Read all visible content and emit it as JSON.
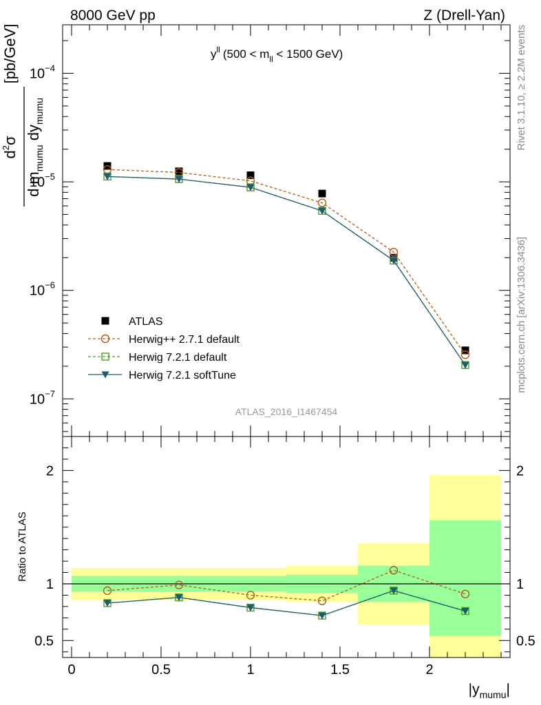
{
  "header": {
    "left": "8000 GeV pp",
    "right": "Z (Drell-Yan)"
  },
  "side_labels": {
    "rivet": "Rivet 3.1.10, ≥ 2.2M events",
    "mcplots": "mcplots.cern.ch [arXiv:1306.3436]"
  },
  "chart_data": {
    "type": "scatter",
    "title": "y^{ll} (500 < m_{ll} < 1500 GeV)",
    "title_main": "y",
    "title_sup": "ll",
    "title_pre": "(500 < m",
    "title_sub": "ll",
    "title_post": " < 1500 GeV)",
    "analysis_label": "ATLAS_2016_I1467454",
    "ylabel_main": "d²σ / (d m_mumu dy_mumu) [pb/GeV]",
    "ylabel_ratio": "Ratio to ATLAS",
    "xlabel": "|y_mumu|",
    "xlabel_main": "|y",
    "xlabel_sub": "mumu",
    "xlabel_post": "|",
    "xlim": [
      -0.05,
      2.45
    ],
    "ylim_main": [
      4.5e-08,
      0.00028
    ],
    "ylog": true,
    "ylim_ratio": [
      0.35,
      2.3
    ],
    "x_ticks": [
      0,
      0.5,
      1,
      1.5,
      2
    ],
    "x_tick_labels": [
      "0",
      "0.5",
      "1",
      "1.5",
      "2"
    ],
    "y_main_ticks_exp": [
      -7,
      -6,
      -5,
      -4
    ],
    "y_ratio_ticks": [
      0.5,
      1,
      2
    ],
    "y_ratio_tick_labels": [
      "0.5",
      "1",
      "2"
    ],
    "x": [
      0.2,
      0.6,
      1.0,
      1.4,
      1.8,
      2.2
    ],
    "bin_edges": [
      0.0,
      0.4,
      0.8,
      1.2,
      1.6,
      2.0,
      2.4
    ],
    "bands": {
      "inner_low": [
        0.93,
        0.93,
        0.93,
        0.92,
        0.84,
        0.54
      ],
      "inner_high": [
        1.07,
        1.07,
        1.07,
        1.08,
        1.16,
        1.56
      ],
      "outer_low": [
        0.86,
        0.86,
        0.86,
        0.84,
        0.64,
        0.35
      ],
      "outer_high": [
        1.14,
        1.14,
        1.14,
        1.16,
        1.36,
        1.96
      ]
    },
    "series": [
      {
        "name": "ATLAS",
        "values": [
          1.4e-05,
          1.25e-05,
          1.15e-05,
          7.8e-06,
          2e-06,
          2.8e-07
        ],
        "ratio": [
          1,
          1,
          1,
          1,
          1,
          1
        ],
        "color": "#000000",
        "marker": "square-filled",
        "line": "none"
      },
      {
        "name": "Herwig++ 2.7.1 default",
        "values": [
          1.3e-05,
          1.22e-05,
          1.02e-05,
          6.4e-06,
          2.25e-06,
          2.55e-07
        ],
        "ratio": [
          0.94,
          0.99,
          0.9,
          0.85,
          1.12,
          0.91
        ],
        "color": "#b25a12",
        "marker": "circle-open",
        "line": "dashed"
      },
      {
        "name": "Herwig 7.2.1 default",
        "values": [
          1.12e-05,
          1.06e-05,
          8.9e-06,
          5.4e-06,
          1.88e-06,
          2.05e-07
        ],
        "ratio": [
          0.83,
          0.88,
          0.79,
          0.72,
          0.94,
          0.76
        ],
        "color": "#4c9e1f",
        "marker": "square-open",
        "line": "dashed"
      },
      {
        "name": "Herwig 7.2.1 softTune",
        "values": [
          1.12e-05,
          1.06e-05,
          8.9e-06,
          5.4e-06,
          1.88e-06,
          2.05e-07
        ],
        "ratio": [
          0.83,
          0.88,
          0.79,
          0.72,
          0.94,
          0.76
        ],
        "color": "#1d5a6b",
        "marker": "triangle-down-filled",
        "line": "solid"
      }
    ],
    "colors": {
      "band_inner": "#99ff99",
      "band_outer": "#ffff99"
    }
  }
}
